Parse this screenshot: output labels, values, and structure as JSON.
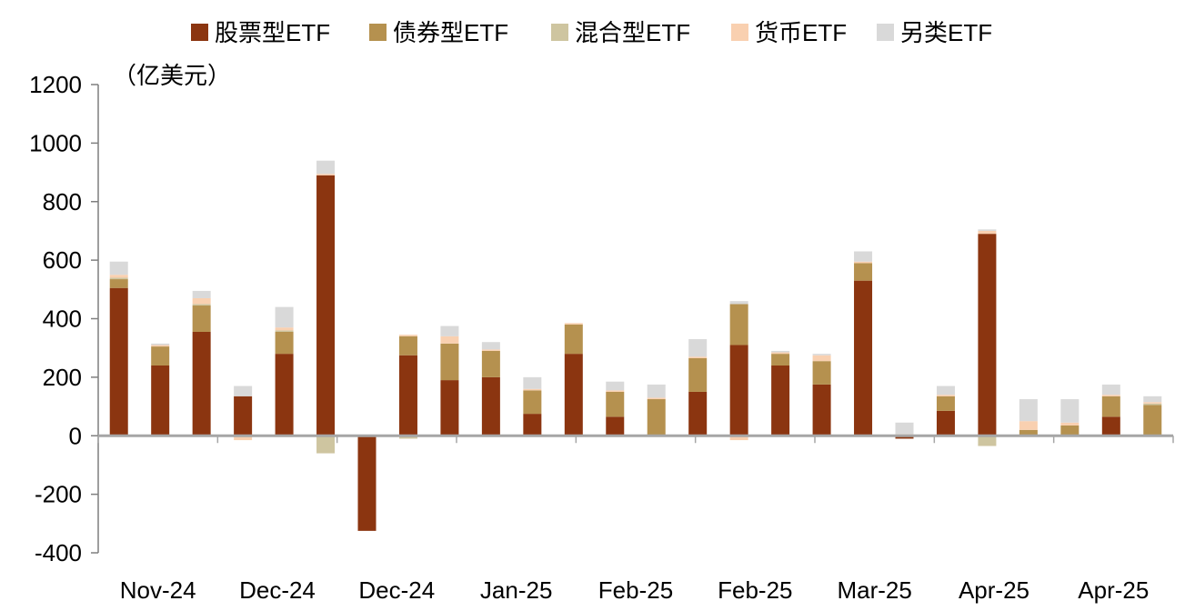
{
  "chart_data": {
    "type": "bar",
    "stacked": true,
    "unit_label": "（亿美元）",
    "ylim": [
      -400,
      1200
    ],
    "yticks": [
      1200,
      1000,
      800,
      600,
      400,
      200,
      0,
      -200,
      -400
    ],
    "xtick_labels": [
      "Nov-24",
      "Dec-24",
      "Dec-24",
      "Jan-25",
      "Feb-25",
      "Feb-25",
      "Mar-25",
      "Apr-25",
      "Apr-25"
    ],
    "legend_position": "top",
    "series": [
      {
        "name": "股票型ETF",
        "color": "#8B3510",
        "values": [
          505,
          240,
          355,
          135,
          280,
          890,
          -325,
          275,
          190,
          200,
          75,
          280,
          65,
          0,
          150,
          310,
          240,
          175,
          530,
          -10,
          85,
          690,
          0,
          0,
          65,
          0
        ]
      },
      {
        "name": "债券型ETF",
        "color": "#B5914F",
        "values": [
          30,
          65,
          90,
          0,
          75,
          0,
          0,
          65,
          125,
          90,
          80,
          100,
          85,
          125,
          115,
          140,
          40,
          80,
          60,
          0,
          50,
          0,
          20,
          35,
          70,
          105
        ]
      },
      {
        "name": "混合型ETF",
        "color": "#CEC5A0",
        "values": [
          5,
          0,
          5,
          -5,
          5,
          -60,
          0,
          -10,
          0,
          0,
          0,
          0,
          0,
          0,
          0,
          0,
          0,
          0,
          0,
          0,
          0,
          -35,
          0,
          0,
          0,
          5
        ]
      },
      {
        "name": "货币ETF",
        "color": "#F9D0B0",
        "values": [
          10,
          5,
          20,
          -10,
          10,
          5,
          0,
          5,
          25,
          5,
          5,
          5,
          5,
          5,
          5,
          -15,
          5,
          20,
          5,
          5,
          5,
          10,
          30,
          10,
          5,
          5
        ]
      },
      {
        "name": "另类ETF",
        "color": "#D9D9D9",
        "values": [
          45,
          5,
          25,
          35,
          70,
          45,
          0,
          0,
          35,
          25,
          40,
          0,
          30,
          45,
          60,
          10,
          5,
          5,
          35,
          40,
          30,
          5,
          75,
          80,
          35,
          20
        ]
      }
    ]
  }
}
